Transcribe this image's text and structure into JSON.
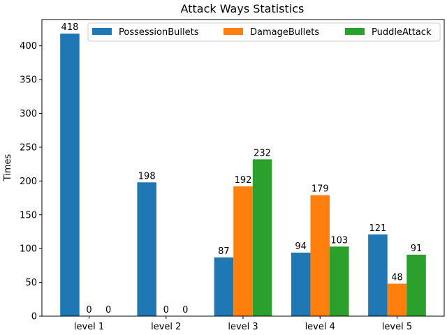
{
  "chart_data": {
    "type": "bar",
    "title": "Attack Ways Statistics",
    "xlabel": "",
    "ylabel": "Times",
    "categories": [
      "level 1",
      "level 2",
      "level 3",
      "level 4",
      "level 5"
    ],
    "series": [
      {
        "name": "PossessionBullets",
        "color": "#1f77b4",
        "values": [
          418,
          198,
          87,
          94,
          121
        ]
      },
      {
        "name": "DamageBullets",
        "color": "#ff7f0e",
        "values": [
          0,
          0,
          192,
          179,
          48
        ]
      },
      {
        "name": "PuddleAttack",
        "color": "#2ca02c",
        "values": [
          0,
          0,
          232,
          103,
          91
        ]
      }
    ],
    "ylim": [
      0,
      438.9
    ],
    "yticks": [
      0,
      50,
      100,
      150,
      200,
      250,
      300,
      350,
      400
    ],
    "legend_position": "top-right",
    "grid": false
  }
}
